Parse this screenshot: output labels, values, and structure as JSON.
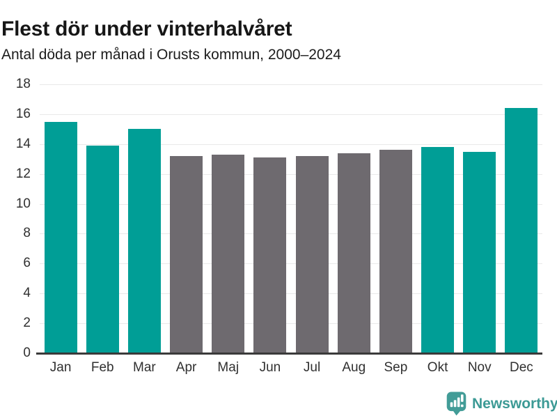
{
  "header": {
    "title": "Flest dör under vinterhalvåret",
    "subtitle": "Antal döda per månad i Orusts kommun, 2000–2024"
  },
  "chart_data": {
    "type": "bar",
    "title": "Flest dör under vinterhalvåret",
    "subtitle": "Antal döda per månad i Orusts kommun, 2000–2024",
    "categories": [
      "Jan",
      "Feb",
      "Mar",
      "Apr",
      "Maj",
      "Jun",
      "Jul",
      "Aug",
      "Sep",
      "Okt",
      "Nov",
      "Dec"
    ],
    "values": [
      15.5,
      13.9,
      15.0,
      13.2,
      13.3,
      13.1,
      13.2,
      13.4,
      13.6,
      13.8,
      13.5,
      16.4
    ],
    "color_keys": [
      "highlight",
      "highlight",
      "highlight",
      "muted",
      "muted",
      "muted",
      "muted",
      "muted",
      "muted",
      "highlight",
      "highlight",
      "highlight"
    ],
    "highlighted_months": [
      "Jan",
      "Feb",
      "Mar",
      "Okt",
      "Nov",
      "Dec"
    ],
    "xlabel": "",
    "ylabel": "",
    "ylim": [
      0,
      18
    ],
    "y_ticks": [
      0,
      2,
      4,
      6,
      8,
      10,
      12,
      14,
      16,
      18
    ],
    "grid": true,
    "legend": false
  },
  "colors": {
    "highlight": "#009E96",
    "muted": "#6E6A6F",
    "brand": "#3C9A95",
    "grid": "#E9E9E9",
    "axis": "#3A3A3A"
  },
  "footer": {
    "brand": "Newsworthy",
    "logo_icon": "newsworthy-speech-bubble-bar-chart-icon"
  }
}
